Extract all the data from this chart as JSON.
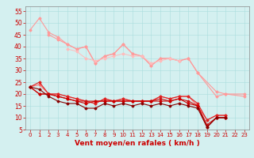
{
  "xlabel": "Vent moyen/en rafales ( km/h )",
  "background_color": "#d4f0f0",
  "grid_color": "#aadddd",
  "x": [
    0,
    1,
    2,
    3,
    4,
    5,
    6,
    7,
    8,
    9,
    10,
    11,
    12,
    13,
    14,
    15,
    16,
    17,
    18,
    19,
    20,
    21,
    22,
    23
  ],
  "series": [
    {
      "color": "#ff9999",
      "marker": "D",
      "markersize": 1.5,
      "linewidth": 0.8,
      "data": [
        47,
        52,
        46,
        44,
        41,
        39,
        40,
        33,
        36,
        37,
        41,
        37,
        36,
        32,
        35,
        35,
        34,
        35,
        29,
        null,
        21,
        20,
        null,
        20
      ]
    },
    {
      "color": "#ff9999",
      "marker": "D",
      "markersize": 1.5,
      "linewidth": 0.8,
      "data": [
        null,
        null,
        45,
        43,
        41,
        39,
        40,
        33,
        36,
        37,
        41,
        37,
        36,
        32,
        35,
        35,
        34,
        35,
        29,
        null,
        19,
        20,
        null,
        19
      ]
    },
    {
      "color": "#ffbbbb",
      "marker": "D",
      "markersize": 1.5,
      "linewidth": 0.7,
      "data": [
        null,
        null,
        null,
        null,
        39,
        38,
        35,
        34,
        35,
        36,
        37,
        36,
        36,
        33,
        34,
        35,
        34,
        null,
        null,
        null,
        null,
        null,
        null,
        null
      ]
    },
    {
      "color": "#ff6666",
      "marker": "D",
      "markersize": 1.5,
      "linewidth": 0.8,
      "data": [
        23,
        24,
        20,
        20,
        19,
        18,
        17,
        16,
        18,
        17,
        18,
        17,
        17,
        17,
        19,
        18,
        19,
        19,
        15,
        9,
        11,
        11,
        null,
        null
      ]
    },
    {
      "color": "#dd2222",
      "marker": "D",
      "markersize": 1.5,
      "linewidth": 0.8,
      "data": [
        23,
        25,
        20,
        20,
        19,
        18,
        17,
        16,
        18,
        17,
        18,
        17,
        17,
        17,
        19,
        18,
        19,
        19,
        16,
        9,
        11,
        11,
        null,
        null
      ]
    },
    {
      "color": "#cc1111",
      "marker": "D",
      "markersize": 1.5,
      "linewidth": 0.8,
      "data": [
        23,
        20,
        20,
        19,
        18,
        17,
        17,
        17,
        17,
        17,
        17,
        17,
        17,
        17,
        18,
        17,
        18,
        17,
        15,
        7,
        10,
        10,
        null,
        null
      ]
    },
    {
      "color": "#cc0000",
      "marker": "D",
      "markersize": 1.5,
      "linewidth": 0.8,
      "data": [
        23,
        20,
        20,
        19,
        18,
        17,
        16,
        17,
        17,
        17,
        17,
        17,
        17,
        17,
        17,
        17,
        18,
        16,
        15,
        6,
        10,
        10,
        null,
        null
      ]
    },
    {
      "color": "#880000",
      "marker": "D",
      "markersize": 1.5,
      "linewidth": 0.8,
      "data": [
        23,
        22,
        19,
        17,
        16,
        16,
        14,
        14,
        16,
        15,
        16,
        15,
        16,
        15,
        16,
        15,
        16,
        15,
        14,
        6,
        10,
        10,
        null,
        null
      ]
    }
  ],
  "xlim": [
    -0.5,
    23.5
  ],
  "ylim": [
    5,
    57
  ],
  "yticks": [
    5,
    10,
    15,
    20,
    25,
    30,
    35,
    40,
    45,
    50,
    55
  ],
  "xticks": [
    0,
    1,
    2,
    3,
    4,
    5,
    6,
    7,
    8,
    9,
    10,
    11,
    12,
    13,
    14,
    15,
    16,
    17,
    18,
    19,
    20,
    21,
    22,
    23
  ],
  "tick_color": "#cc0000",
  "label_color": "#cc0000",
  "xlabel_fontsize": 6.5,
  "ytick_fontsize": 5.5,
  "xtick_fontsize": 5.0,
  "spine_color": "#888888"
}
